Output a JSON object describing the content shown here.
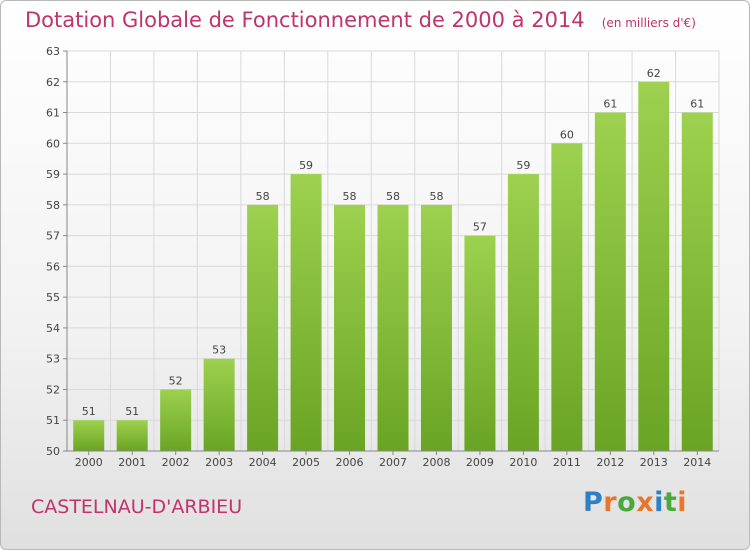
{
  "header": {
    "title": "Dotation Globale de Fonctionnement de 2000 à 2014",
    "unit": "(en milliers d'€)"
  },
  "footer": {
    "commune": "CASTELNAU-D'ARBIEU",
    "brand_letters": [
      {
        "char": "P",
        "color": "#2f7fc3"
      },
      {
        "char": "r",
        "color": "#e8762b"
      },
      {
        "char": "o",
        "color": "#4aa83c"
      },
      {
        "char": "x",
        "color": "#e8762b"
      },
      {
        "char": "i",
        "color": "#2f7fc3"
      },
      {
        "char": "t",
        "color": "#4aa83c"
      },
      {
        "char": "i",
        "color": "#e8762b"
      }
    ]
  },
  "chart_data": {
    "type": "bar",
    "title": "Dotation Globale de Fonctionnement de 2000 à 2014",
    "subtitle": "(en milliers d'€)",
    "xlabel": "",
    "ylabel": "",
    "categories": [
      "2000",
      "2001",
      "2002",
      "2003",
      "2004",
      "2005",
      "2006",
      "2007",
      "2008",
      "2009",
      "2010",
      "2011",
      "2012",
      "2013",
      "2014"
    ],
    "values": [
      51,
      51,
      52,
      53,
      58,
      59,
      58,
      58,
      58,
      57,
      59,
      60,
      61,
      62,
      61
    ],
    "data_labels": [
      "51",
      "51",
      "52",
      "53",
      "58",
      "59",
      "58",
      "58",
      "58",
      "57",
      "59",
      "60",
      "61",
      "62",
      "61"
    ],
    "ylim": [
      50,
      63
    ],
    "yticks": [
      50,
      51,
      52,
      53,
      54,
      55,
      56,
      57,
      58,
      59,
      60,
      61,
      62,
      63
    ],
    "grid": true,
    "legend": "none",
    "colors": {
      "bar_light": "#9dd14f",
      "bar_dark": "#6aa424",
      "grid": "#d9d9d9",
      "axis": "#888888",
      "text": "#444444",
      "accent": "#c0336b"
    }
  }
}
